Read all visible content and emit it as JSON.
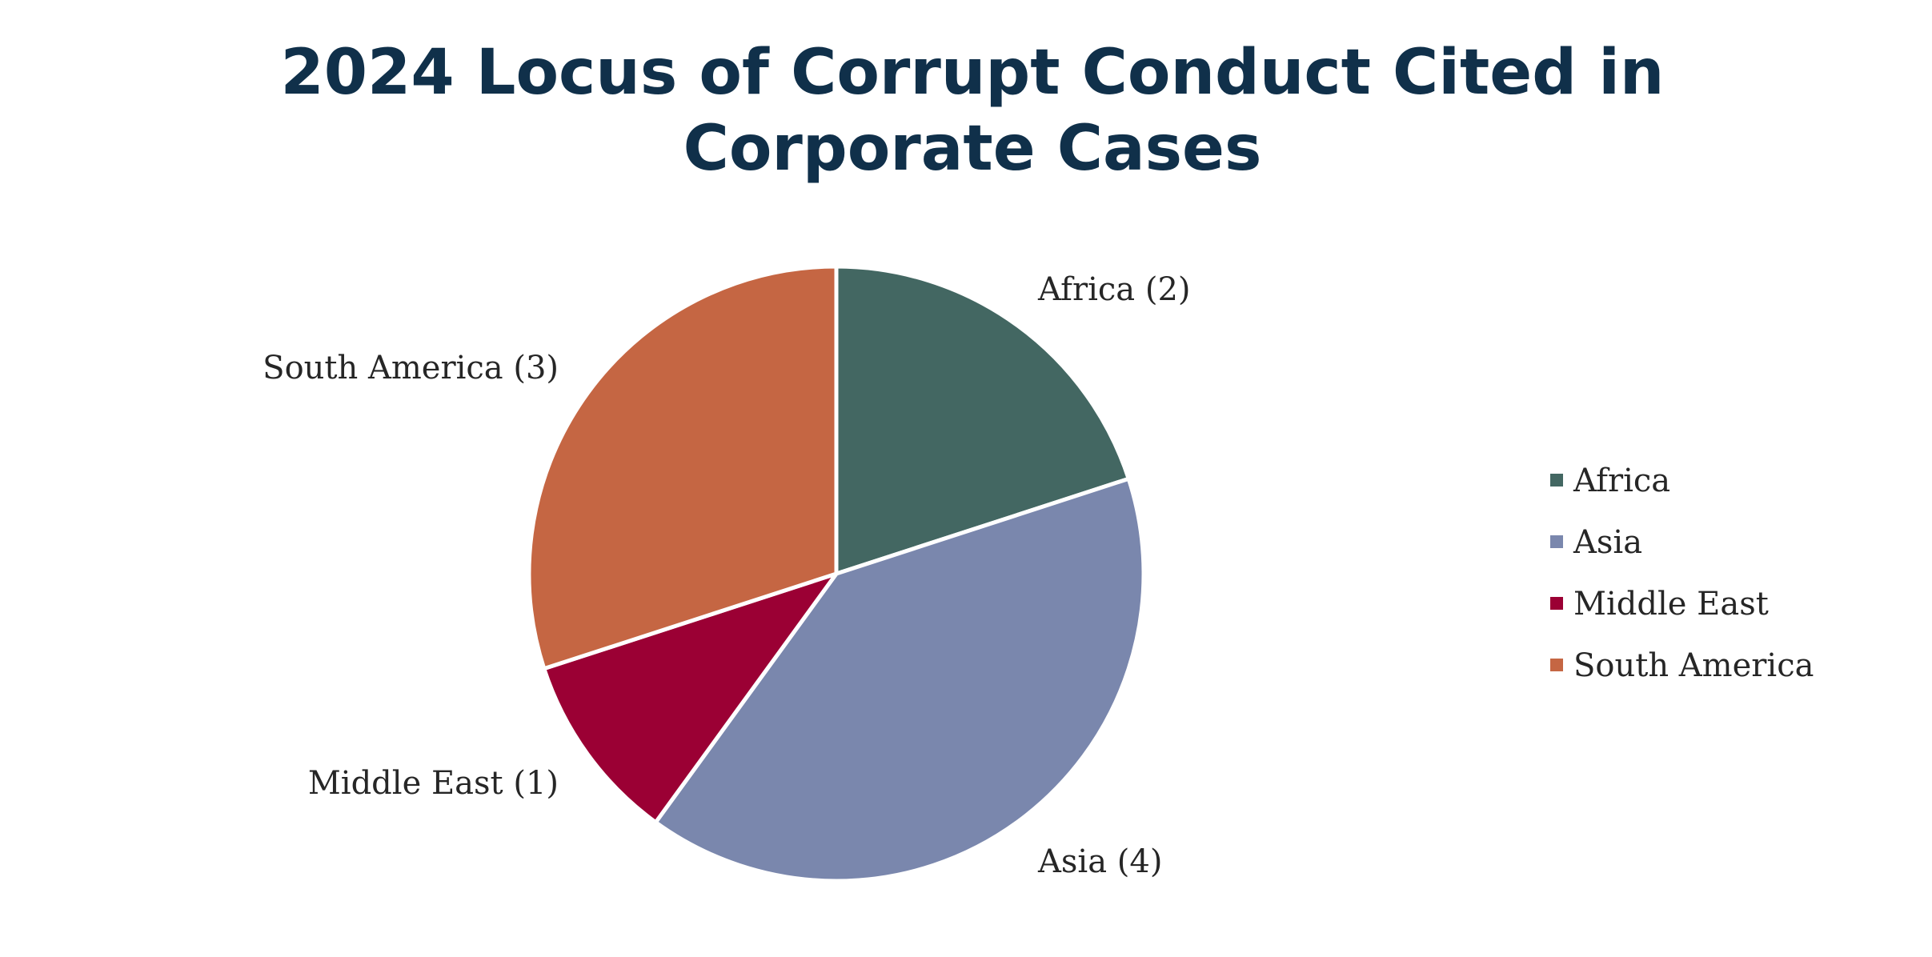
{
  "chart_data": {
    "type": "pie",
    "title_lines": [
      "2024 Locus of Corrupt Conduct Cited in",
      "Corporate Cases"
    ],
    "categories": [
      "Africa",
      "Asia",
      "Middle East",
      "South America"
    ],
    "values": [
      2,
      4,
      1,
      3
    ],
    "data_labels": [
      "Africa (2)",
      "Asia (4)",
      "Middle East (1)",
      "South America (3)"
    ],
    "colors": [
      "#436762",
      "#7a87ad",
      "#9b0034",
      "#c56643"
    ],
    "start_angle": "12 o'clock",
    "direction": "clockwise",
    "legend_position": "right"
  }
}
